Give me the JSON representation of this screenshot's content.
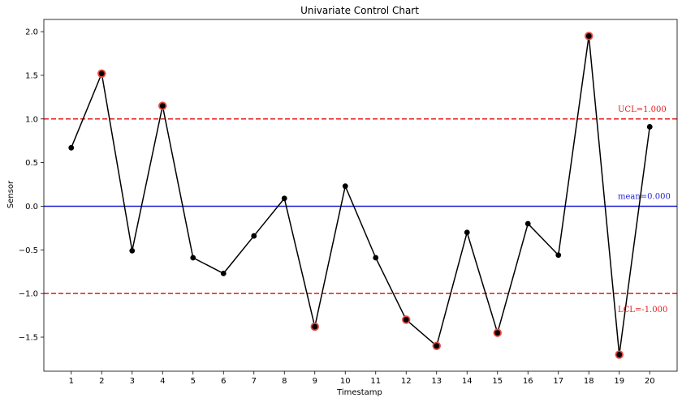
{
  "chart_data": {
    "type": "line",
    "title": "Univariate Control Chart",
    "xlabel": "Timestamp",
    "ylabel": "Sensor",
    "x": [
      1,
      2,
      3,
      4,
      5,
      6,
      7,
      8,
      9,
      10,
      11,
      12,
      13,
      14,
      15,
      16,
      17,
      18,
      19,
      20
    ],
    "values": [
      0.67,
      1.52,
      -0.51,
      1.15,
      -0.59,
      -0.77,
      -0.34,
      0.09,
      -1.38,
      0.23,
      -0.59,
      -1.3,
      -1.6,
      -0.3,
      -1.45,
      -0.2,
      -0.56,
      1.95,
      -1.7,
      0.91
    ],
    "out_of_control_x": [
      2,
      4,
      9,
      12,
      13,
      15,
      18,
      19
    ],
    "xlim": [
      0.1,
      20.9
    ],
    "ylim": [
      -1.89,
      2.14
    ],
    "yticks": [
      -1.5,
      -1.0,
      -0.5,
      0.0,
      0.5,
      1.0,
      1.5,
      2.0
    ],
    "ytick_labels": [
      "−1.5",
      "−1.0",
      "−0.5",
      "0.0",
      "0.5",
      "1.0",
      "1.5",
      "2.0"
    ],
    "reference_lines": [
      {
        "name": "ucl",
        "value": 1.0,
        "label": "UCL=1.000",
        "color": "#e41a1c",
        "style": "dashed"
      },
      {
        "name": "mean",
        "value": 0.0,
        "label": "mean=0.000",
        "color": "#1f1fd1",
        "style": "solid"
      },
      {
        "name": "lcl",
        "value": -1.0,
        "label": "LCL=-1.000",
        "color": "#e41a1c",
        "style": "dashed"
      }
    ],
    "colors": {
      "line": "#000000",
      "marker": "#000000",
      "highlight": "#e8483f",
      "frame": "#000000"
    },
    "grid": false,
    "legend": "none"
  }
}
